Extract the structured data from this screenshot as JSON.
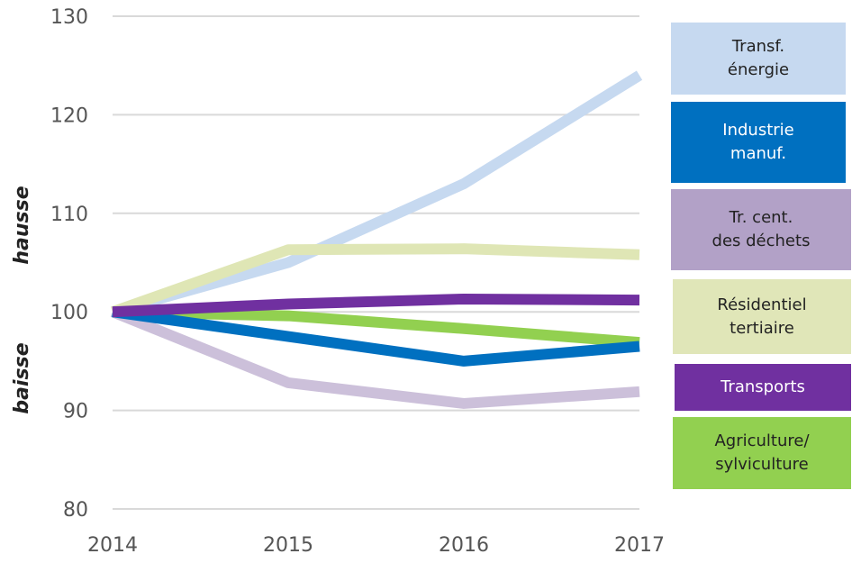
{
  "chart_data": {
    "type": "line",
    "x": [
      "2014",
      "2015",
      "2016",
      "2017"
    ],
    "ylim": [
      80,
      130
    ],
    "yticks": [
      80,
      90,
      100,
      110,
      120,
      130
    ],
    "grid": true,
    "side_labels": {
      "up": "hausse",
      "down": "baisse"
    },
    "legend_position": "right",
    "series": [
      {
        "name": "Transf.\nénergie",
        "values": [
          100,
          105,
          113,
          124
        ],
        "color": "#c6d9f0",
        "text_color": "#222222"
      },
      {
        "name": "Industrie\nmanuf.",
        "values": [
          100,
          97.5,
          95,
          96.5
        ],
        "color": "#0070c0",
        "text_color": "#ffffff"
      },
      {
        "name": "Tr. cent.\ndes déchets",
        "values": [
          100,
          92.8,
          90.7,
          91.9
        ],
        "color": "#b2a1c7",
        "text_color": "#222222",
        "line_color": "#ccc0da"
      },
      {
        "name": "Résidentiel\ntertiaire",
        "values": [
          100,
          106.3,
          106.4,
          105.8
        ],
        "color": "#e0e6b8",
        "text_color": "#222222",
        "line_color": "#dfe6b5"
      },
      {
        "name": "Transports",
        "values": [
          100,
          100.8,
          101.3,
          101.2
        ],
        "color": "#7030a0",
        "text_color": "#ffffff"
      },
      {
        "name": "Agriculture/\nsylviculture",
        "values": [
          100,
          99.6,
          98.3,
          96.9
        ],
        "color": "#92d050",
        "text_color": "#222222"
      }
    ]
  }
}
